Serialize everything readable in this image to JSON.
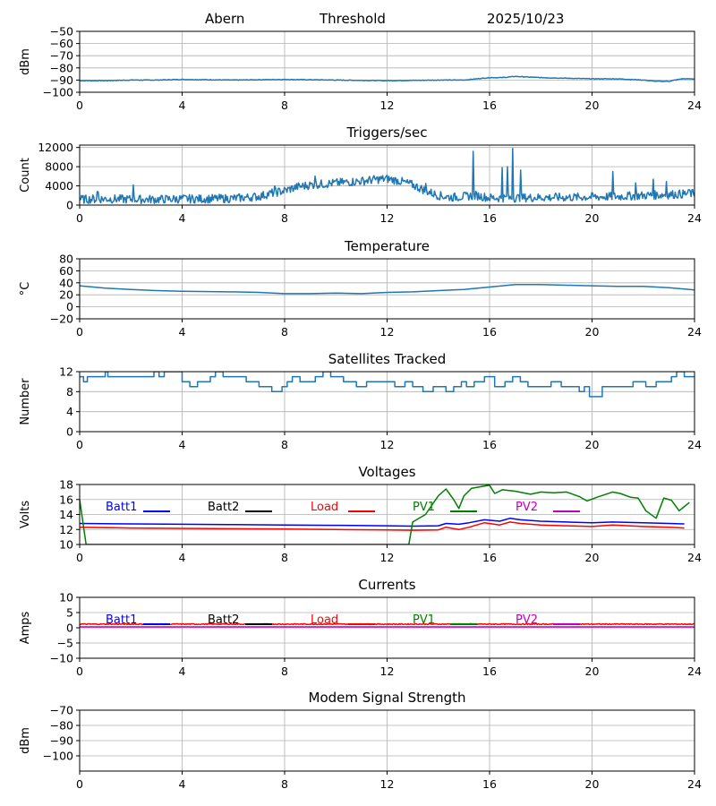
{
  "header": {
    "site": "Abern",
    "mode": "Threshold",
    "date": "2025/10/23"
  },
  "colors": {
    "default": "#1f77b4",
    "Batt1": "#0000ff",
    "Batt2": "#000000",
    "Load": "#ff0000",
    "PV1": "#008000",
    "PV2": "#c000c0",
    "grid": "#b0b0b0"
  },
  "chart_data": [
    {
      "id": "signal",
      "type": "line",
      "title": "",
      "ylabel": "dBm",
      "xlim": [
        0,
        24
      ],
      "xticks": [
        0,
        4,
        8,
        12,
        16,
        20,
        24
      ],
      "ylim": [
        -100,
        -50
      ],
      "yticks": [
        -100,
        -90,
        -80,
        -70,
        -60,
        -50
      ],
      "series": [
        {
          "name": "signal",
          "color": "#1f77b4",
          "noise": 0.25,
          "x": [
            0,
            1,
            2,
            3,
            4,
            6,
            8,
            10,
            12,
            14,
            15,
            15.5,
            16,
            16.5,
            17,
            17.5,
            18,
            19,
            20,
            21,
            22,
            22.5,
            23,
            23.5,
            24
          ],
          "y": [
            -90.5,
            -90.5,
            -90,
            -90,
            -89.5,
            -90,
            -89.5,
            -90,
            -90.5,
            -90,
            -90,
            -89,
            -88,
            -88,
            -87,
            -87.5,
            -88,
            -88.5,
            -89,
            -89,
            -90,
            -91,
            -91,
            -89,
            -89
          ]
        }
      ]
    },
    {
      "id": "triggers",
      "type": "line",
      "title": "Triggers/sec",
      "ylabel": "Count",
      "xlim": [
        0,
        24
      ],
      "xticks": [
        0,
        4,
        8,
        12,
        16,
        20,
        24
      ],
      "ylim": [
        0,
        12500
      ],
      "yticks": [
        0,
        4000,
        8000,
        12000
      ],
      "series": [
        {
          "name": "triggers",
          "color": "#1f77b4",
          "noise": 900,
          "x": [
            0,
            1,
            2,
            3,
            4,
            5,
            6,
            7,
            7.5,
            8,
            8.5,
            9,
            9.5,
            10,
            10.5,
            11,
            11.5,
            12,
            12.5,
            13,
            13.5,
            14,
            14.5,
            15,
            15.5,
            16,
            17,
            18,
            19,
            20,
            21,
            22,
            23,
            24
          ],
          "y": [
            1200,
            1300,
            1200,
            1200,
            1300,
            1300,
            1400,
            1800,
            2500,
            3000,
            3800,
            4200,
            4400,
            4600,
            4800,
            5000,
            5300,
            5500,
            5000,
            4200,
            3000,
            2000,
            1600,
            1800,
            2000,
            1500,
            1500,
            1600,
            1600,
            1700,
            1800,
            2000,
            2200,
            2400
          ]
        }
      ],
      "spikes": [
        [
          0.7,
          2800
        ],
        [
          2.1,
          4200
        ],
        [
          7.6,
          4000
        ],
        [
          9.2,
          6000
        ],
        [
          13.5,
          4500
        ],
        [
          15.35,
          11200
        ],
        [
          16.5,
          7800
        ],
        [
          16.7,
          8000
        ],
        [
          16.9,
          11800
        ],
        [
          17.2,
          7300
        ],
        [
          20.8,
          7000
        ],
        [
          21.7,
          4600
        ],
        [
          22.4,
          5400
        ],
        [
          22.9,
          4900
        ],
        [
          23.8,
          3200
        ]
      ]
    },
    {
      "id": "temperature",
      "type": "line",
      "title": "Temperature",
      "ylabel": "°C",
      "xlim": [
        0,
        24
      ],
      "xticks": [
        0,
        4,
        8,
        12,
        16,
        20,
        24
      ],
      "ylim": [
        -20,
        80
      ],
      "yticks": [
        -20,
        0,
        20,
        40,
        60,
        80
      ],
      "series": [
        {
          "name": "temperature",
          "color": "#1f77b4",
          "noise": 0,
          "x": [
            0,
            1,
            2,
            3,
            4,
            6,
            7,
            8,
            9,
            10,
            11,
            12,
            13,
            14,
            15,
            16,
            17,
            18,
            19,
            20,
            21,
            22,
            23,
            24
          ],
          "y": [
            35,
            31,
            29,
            27,
            26,
            25,
            24,
            22,
            22,
            23,
            22,
            24,
            25,
            27,
            29,
            33,
            37,
            37,
            36,
            35,
            34,
            34,
            32,
            28
          ]
        }
      ]
    },
    {
      "id": "satellites",
      "type": "step",
      "title": "Satellites Tracked",
      "ylabel": "Number",
      "xlim": [
        0,
        24
      ],
      "xticks": [
        0,
        4,
        8,
        12,
        16,
        20,
        24
      ],
      "ylim": [
        0,
        12
      ],
      "yticks": [
        0,
        4,
        8,
        12
      ],
      "series": [
        {
          "name": "satellites",
          "color": "#1f77b4",
          "x": [
            0,
            0.15,
            0.3,
            0.9,
            1.0,
            1.1,
            1.3,
            2.7,
            2.9,
            3.1,
            3.3,
            3.5,
            3.8,
            4.0,
            4.3,
            4.6,
            5.1,
            5.3,
            5.6,
            5.9,
            6.2,
            6.5,
            7.0,
            7.5,
            7.9,
            8.1,
            8.3,
            8.6,
            9.2,
            9.5,
            9.8,
            10.3,
            10.8,
            11.2,
            11.8,
            12.3,
            12.7,
            13.0,
            13.4,
            13.8,
            14.3,
            14.6,
            14.9,
            15.1,
            15.4,
            15.8,
            16.2,
            16.6,
            16.9,
            17.2,
            17.5,
            18.0,
            18.4,
            18.8,
            19.2,
            19.5,
            19.7,
            19.9,
            20.4,
            20.9,
            21.3,
            21.6,
            22.1,
            22.5,
            22.9,
            23.1,
            23.3,
            23.6,
            23.9
          ],
          "y": [
            11,
            10,
            11,
            11,
            12,
            11,
            11,
            11,
            12,
            11,
            12,
            12,
            12,
            10,
            9,
            10,
            11,
            12,
            11,
            11,
            11,
            10,
            9,
            8,
            9,
            10,
            11,
            10,
            11,
            12,
            11,
            10,
            9,
            10,
            10,
            9,
            10,
            9,
            8,
            9,
            8,
            9,
            10,
            9,
            10,
            11,
            9,
            10,
            11,
            10,
            9,
            9,
            10,
            9,
            9,
            8,
            9,
            7,
            9,
            9,
            9,
            10,
            9,
            10,
            10,
            11,
            12,
            11,
            11
          ]
        }
      ]
    },
    {
      "id": "voltages",
      "type": "line",
      "title": "Voltages",
      "ylabel": "Volts",
      "xlim": [
        0,
        24
      ],
      "xticks": [
        0,
        4,
        8,
        12,
        16,
        20,
        24
      ],
      "ylim": [
        10,
        18
      ],
      "yticks": [
        10,
        12,
        14,
        16,
        18
      ],
      "legend": [
        "Batt1",
        "Batt2",
        "Load",
        "PV1",
        "PV2"
      ],
      "series": [
        {
          "name": "Batt1",
          "color": "#0000ff",
          "noise": 0,
          "x": [
            0,
            2,
            4,
            6,
            8,
            10,
            12,
            13,
            14,
            14.3,
            14.8,
            15.2,
            15.8,
            16.4,
            16.8,
            17.2,
            18,
            19,
            20,
            20.8,
            22,
            23,
            23.6
          ],
          "y": [
            12.8,
            12.75,
            12.7,
            12.65,
            12.6,
            12.55,
            12.5,
            12.45,
            12.5,
            12.8,
            12.7,
            12.9,
            13.3,
            13.1,
            13.5,
            13.3,
            13.1,
            13.0,
            12.9,
            13.0,
            12.9,
            12.8,
            12.75
          ]
        },
        {
          "name": "Load",
          "color": "#ff0000",
          "noise": 0,
          "x": [
            0,
            2,
            4,
            6,
            8,
            10,
            12,
            13,
            14,
            14.3,
            14.8,
            15.2,
            15.8,
            16.4,
            16.8,
            17.2,
            18,
            19,
            20,
            20.8,
            22,
            23,
            23.6
          ],
          "y": [
            12.3,
            12.2,
            12.15,
            12.1,
            12.05,
            12.0,
            11.95,
            11.9,
            11.95,
            12.3,
            12.0,
            12.3,
            12.9,
            12.6,
            13.0,
            12.8,
            12.6,
            12.5,
            12.4,
            12.6,
            12.4,
            12.3,
            12.2
          ]
        },
        {
          "name": "PV1",
          "color": "#008000",
          "noise": 0,
          "x": [
            0,
            0.25,
            12.85,
            13.0,
            13.5,
            14.0,
            14.3,
            14.6,
            14.8,
            15.0,
            15.3,
            15.8,
            16.0,
            16.2,
            16.5,
            17.0,
            17.6,
            18.0,
            18.5,
            19.0,
            19.5,
            19.8,
            20.2,
            20.8,
            21.1,
            21.5,
            21.8,
            22.1,
            22.5,
            22.8,
            23.1,
            23.4,
            23.8
          ],
          "y": [
            16.0,
            10.0,
            10.0,
            13.0,
            14.0,
            16.5,
            17.4,
            16.0,
            14.8,
            16.5,
            17.5,
            17.8,
            17.9,
            16.8,
            17.3,
            17.1,
            16.7,
            17.0,
            16.9,
            17.0,
            16.4,
            15.8,
            16.3,
            17.0,
            16.8,
            16.3,
            16.2,
            14.5,
            13.5,
            16.2,
            15.9,
            14.5,
            15.6
          ]
        }
      ]
    },
    {
      "id": "currents",
      "type": "line",
      "title": "Currents",
      "ylabel": "Amps",
      "xlim": [
        0,
        24
      ],
      "xticks": [
        0,
        4,
        8,
        12,
        16,
        20,
        24
      ],
      "ylim": [
        -10,
        10
      ],
      "yticks": [
        -10,
        -5,
        0,
        5,
        10
      ],
      "legend": [
        "Batt1",
        "Batt2",
        "Load",
        "PV1",
        "PV2"
      ],
      "series": [
        {
          "name": "PV2",
          "color": "#c000c0",
          "noise": 0,
          "x": [
            0,
            24
          ],
          "y": [
            0.3,
            0.3
          ]
        },
        {
          "name": "Load",
          "color": "#ff0000",
          "noise": 0.15,
          "x": [
            0,
            24
          ],
          "y": [
            1.2,
            1.2
          ]
        }
      ]
    },
    {
      "id": "modem",
      "type": "line",
      "title": "Modem Signal Strength",
      "ylabel": "dBm",
      "xlim": [
        0,
        24
      ],
      "xticks": [
        0,
        4,
        8,
        12,
        16,
        20,
        24
      ],
      "ylim": [
        -110,
        -70
      ],
      "yticks": [
        -100,
        -90,
        -80,
        -70
      ],
      "series": []
    }
  ]
}
